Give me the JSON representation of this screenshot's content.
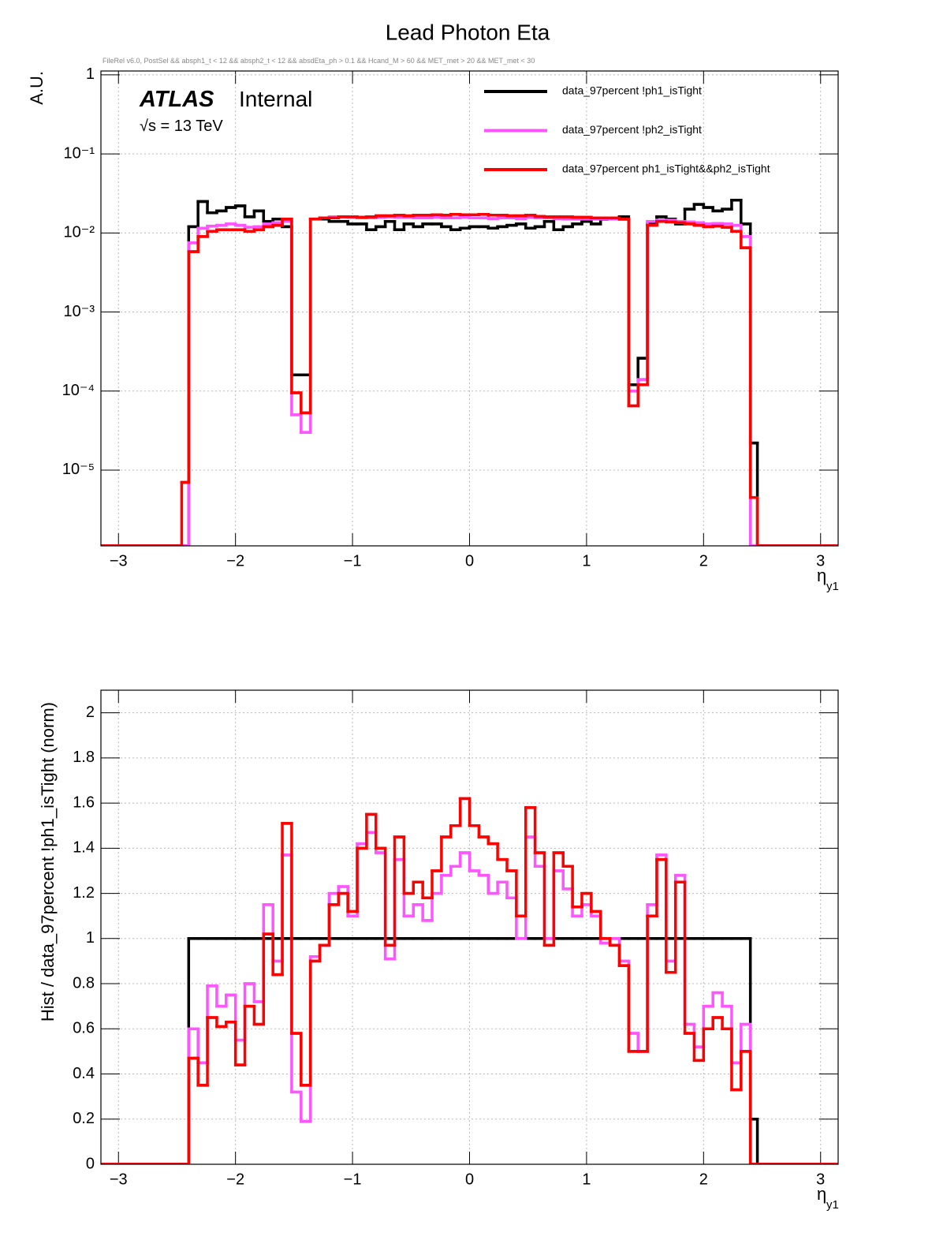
{
  "chart_data": [
    {
      "type": "histogram",
      "title": "Lead Photon Eta",
      "subtitle": "FileRel v6.0, PostSel &&  absph1_t < 12 && absph2_t < 12 && absdEta_ph > 0.1 && Hcand_M > 60 && MET_met > 20 && MET_met < 30",
      "ylabel": "A.U.",
      "xlabel": "η",
      "xlabel_sub": "y1",
      "annotations": [
        "ATLAS",
        "Internal",
        "√s = 13 TeV"
      ],
      "logy": true,
      "grid": true,
      "legend": "top-right",
      "xlim": [
        -3.15,
        3.15
      ],
      "ylim": [
        1.1e-06,
        1.12
      ],
      "xticks": [
        {
          "value": -3,
          "label": "−3"
        },
        {
          "value": -2,
          "label": "−2"
        },
        {
          "value": -1,
          "label": "−1"
        },
        0,
        1,
        2,
        3
      ],
      "yticks": [
        {
          "value": 1e-05,
          "label": "10⁻⁵"
        },
        {
          "value": 0.0001,
          "label": "10⁻⁴"
        },
        {
          "value": 0.001,
          "label": "10⁻³"
        },
        {
          "value": 0.01,
          "label": "10⁻²"
        },
        {
          "value": 0.1,
          "label": "10⁻¹"
        },
        1
      ],
      "bins": [
        -3.15,
        -2.46,
        -2.4,
        -2.32,
        -2.24,
        -2.16,
        -2.08,
        -2.0,
        -1.92,
        -1.84,
        -1.76,
        -1.68,
        -1.6,
        -1.52,
        -1.44,
        -1.36,
        -1.28,
        -1.2,
        -1.12,
        -1.04,
        -0.96,
        -0.88,
        -0.8,
        -0.72,
        -0.64,
        -0.56,
        -0.48,
        -0.4,
        -0.32,
        -0.24,
        -0.16,
        -0.08,
        0,
        0.08,
        0.16,
        0.24,
        0.32,
        0.4,
        0.48,
        0.56,
        0.64,
        0.72,
        0.8,
        0.88,
        0.96,
        1.04,
        1.12,
        1.2,
        1.28,
        1.36,
        1.44,
        1.52,
        1.6,
        1.68,
        1.76,
        1.84,
        1.92,
        2.0,
        2.08,
        2.16,
        2.24,
        2.32,
        2.4,
        2.46,
        3.15
      ],
      "series": [
        {
          "name": "data_97percent  !ph1_isTight",
          "color": "#000000",
          "values": [
            0,
            0,
            0.012,
            0.025,
            0.018,
            0.019,
            0.021,
            0.022,
            0.016,
            0.019,
            0.014,
            0.015,
            0.012,
            0.00016,
            0.00016,
            0.015,
            0.015,
            0.014,
            0.014,
            0.013,
            0.013,
            0.011,
            0.012,
            0.014,
            0.011,
            0.013,
            0.012,
            0.013,
            0.013,
            0.012,
            0.011,
            0.0115,
            0.012,
            0.012,
            0.0115,
            0.012,
            0.0125,
            0.013,
            0.0115,
            0.012,
            0.014,
            0.011,
            0.012,
            0.013,
            0.014,
            0.013,
            0.015,
            0.015,
            0.016,
            0.00012,
            0.00026,
            0.013,
            0.016,
            0.015,
            0.013,
            0.02,
            0.023,
            0.021,
            0.019,
            0.02,
            0.026,
            0.013,
            2.2e-05,
            0
          ]
        },
        {
          "name": "data_97percent  !ph2_isTight",
          "color": "#ff55ff",
          "values": [
            0,
            0,
            0.0075,
            0.0115,
            0.0122,
            0.0125,
            0.013,
            0.0125,
            0.0118,
            0.012,
            0.013,
            0.0135,
            0.014,
            5e-05,
            3e-05,
            0.015,
            0.0155,
            0.016,
            0.016,
            0.0158,
            0.0155,
            0.0155,
            0.0158,
            0.016,
            0.0158,
            0.0158,
            0.0155,
            0.0155,
            0.0158,
            0.0155,
            0.0155,
            0.0158,
            0.0155,
            0.0155,
            0.0152,
            0.0155,
            0.0155,
            0.0152,
            0.0158,
            0.0155,
            0.0155,
            0.0152,
            0.015,
            0.015,
            0.015,
            0.015,
            0.0152,
            0.015,
            0.0148,
            0.0001,
            0.00014,
            0.014,
            0.0145,
            0.0145,
            0.014,
            0.0138,
            0.0135,
            0.013,
            0.0132,
            0.013,
            0.0125,
            0.009,
            0,
            0
          ]
        },
        {
          "name": "data_97percent  ph1_isTight&&ph2_isTight",
          "color": "#ff0000",
          "values": [
            0,
            7e-06,
            0.0058,
            0.009,
            0.0105,
            0.011,
            0.011,
            0.011,
            0.0105,
            0.011,
            0.012,
            0.0125,
            0.015,
            9.5e-05,
            5.3e-05,
            0.015,
            0.0155,
            0.0155,
            0.016,
            0.016,
            0.0158,
            0.016,
            0.0165,
            0.0165,
            0.0168,
            0.0165,
            0.0168,
            0.0168,
            0.017,
            0.0168,
            0.0172,
            0.017,
            0.017,
            0.0172,
            0.0168,
            0.0168,
            0.0165,
            0.0165,
            0.0168,
            0.0162,
            0.016,
            0.016,
            0.016,
            0.0158,
            0.0158,
            0.0155,
            0.0155,
            0.0155,
            0.015,
            6.5e-05,
            0.00012,
            0.0125,
            0.014,
            0.0138,
            0.0135,
            0.013,
            0.0125,
            0.012,
            0.0122,
            0.0118,
            0.0105,
            0.0065,
            4.5e-06,
            0
          ]
        }
      ]
    },
    {
      "type": "histogram",
      "ylabel": "Hist / data_97percent  !ph1_isTight (norm)",
      "xlabel": "η",
      "xlabel_sub": "y1",
      "logy": false,
      "grid": true,
      "xlim": [
        -3.15,
        3.15
      ],
      "ylim": [
        0,
        2.1
      ],
      "xticks": [
        {
          "value": -3,
          "label": "−3"
        },
        {
          "value": -2,
          "label": "−2"
        },
        {
          "value": -1,
          "label": "−1"
        },
        0,
        1,
        2,
        3
      ],
      "yticks": [
        0,
        0.2,
        0.4,
        0.6,
        0.8,
        1,
        1.2,
        1.4,
        1.6,
        1.8,
        2
      ],
      "bins": [
        -3.15,
        -2.46,
        -2.4,
        -2.32,
        -2.24,
        -2.16,
        -2.08,
        -2.0,
        -1.92,
        -1.84,
        -1.76,
        -1.68,
        -1.6,
        -1.52,
        -1.44,
        -1.36,
        -1.28,
        -1.2,
        -1.12,
        -1.04,
        -0.96,
        -0.88,
        -0.8,
        -0.72,
        -0.64,
        -0.56,
        -0.48,
        -0.4,
        -0.32,
        -0.24,
        -0.16,
        -0.08,
        0,
        0.08,
        0.16,
        0.24,
        0.32,
        0.4,
        0.48,
        0.56,
        0.64,
        0.72,
        0.8,
        0.88,
        0.96,
        1.04,
        1.12,
        1.2,
        1.28,
        1.36,
        1.44,
        1.52,
        1.6,
        1.68,
        1.76,
        1.84,
        1.92,
        2.0,
        2.08,
        2.16,
        2.24,
        2.32,
        2.4,
        2.46,
        3.15
      ],
      "series": [
        {
          "color": "#000000",
          "values": [
            0,
            0,
            1,
            1,
            1,
            1,
            1,
            1,
            1,
            1,
            1,
            1,
            1,
            1,
            1,
            1,
            1,
            1,
            1,
            1,
            1,
            1,
            1,
            1,
            1,
            1,
            1,
            1,
            1,
            1,
            1,
            1,
            1,
            1,
            1,
            1,
            1,
            1,
            1,
            1,
            1,
            1,
            1,
            1,
            1,
            1,
            1,
            1,
            1,
            1,
            1,
            1,
            1,
            1,
            1,
            1,
            1,
            1,
            1,
            1,
            1,
            1,
            0.2,
            0
          ]
        },
        {
          "color": "#ff55ff",
          "values": [
            0,
            0,
            0.6,
            0.45,
            0.79,
            0.7,
            0.75,
            0.55,
            0.8,
            0.72,
            1.15,
            0.9,
            1.37,
            0.32,
            0.19,
            0.92,
            0.97,
            1.2,
            1.23,
            1.1,
            1.42,
            1.47,
            1.38,
            0.91,
            1.35,
            1.1,
            1.15,
            1.08,
            1.2,
            1.28,
            1.32,
            1.38,
            1.3,
            1.28,
            1.2,
            1.25,
            1.18,
            1.0,
            1.45,
            1.32,
            1.0,
            1.3,
            1.22,
            1.1,
            1.15,
            1.1,
            0.98,
            1.0,
            0.9,
            0.58,
            0.5,
            1.15,
            1.37,
            0.9,
            1.28,
            0.62,
            0.52,
            0.7,
            0.76,
            0.7,
            0.45,
            0.62,
            0,
            0
          ]
        },
        {
          "color": "#ff0000",
          "values": [
            0,
            0,
            0.47,
            0.35,
            0.65,
            0.61,
            0.63,
            0.44,
            0.7,
            0.62,
            1.02,
            0.84,
            1.51,
            0.58,
            0.35,
            0.9,
            0.97,
            1.15,
            1.2,
            1.12,
            1.4,
            1.55,
            1.4,
            0.97,
            1.45,
            1.2,
            1.25,
            1.18,
            1.3,
            1.45,
            1.5,
            1.62,
            1.5,
            1.45,
            1.42,
            1.35,
            1.3,
            1.1,
            1.58,
            1.38,
            0.97,
            1.38,
            1.32,
            1.14,
            1.2,
            1.12,
            1.0,
            0.97,
            0.88,
            0.5,
            0.5,
            1.1,
            1.35,
            0.85,
            1.25,
            0.58,
            0.46,
            0.6,
            0.65,
            0.6,
            0.33,
            0.5,
            0,
            0
          ]
        }
      ]
    }
  ]
}
